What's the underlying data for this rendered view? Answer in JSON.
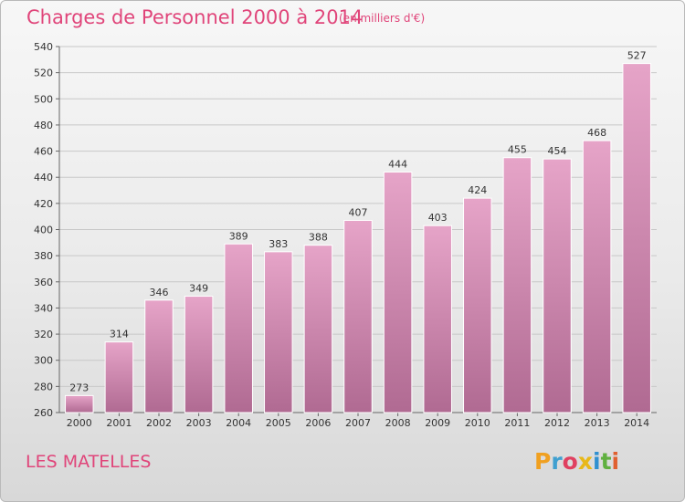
{
  "chart_data": {
    "type": "bar",
    "title": "Charges de Personnel 2000 à 2014",
    "subtitle": "(en milliers d'€)",
    "categories": [
      "2000",
      "2001",
      "2002",
      "2003",
      "2004",
      "2005",
      "2006",
      "2007",
      "2008",
      "2009",
      "2010",
      "2011",
      "2012",
      "2013",
      "2014"
    ],
    "values": [
      273,
      314,
      346,
      349,
      389,
      383,
      388,
      407,
      444,
      403,
      424,
      455,
      454,
      468,
      527
    ],
    "ylim": [
      260,
      540
    ],
    "yticks": [
      260,
      280,
      300,
      320,
      340,
      360,
      380,
      400,
      420,
      440,
      460,
      480,
      500,
      520,
      540
    ],
    "grid": true,
    "bar_color": "#e6a4c8",
    "bar_color_dark": "#b06a92"
  },
  "footer": {
    "commune": "LES MATELLES",
    "logo_letters": [
      "P",
      "r",
      "o",
      "x",
      "i",
      "t",
      "i"
    ],
    "logo_colors": [
      "#f0a020",
      "#40a0d0",
      "#e04060",
      "#e8b818",
      "#3090d0",
      "#60b040",
      "#e06030"
    ]
  }
}
